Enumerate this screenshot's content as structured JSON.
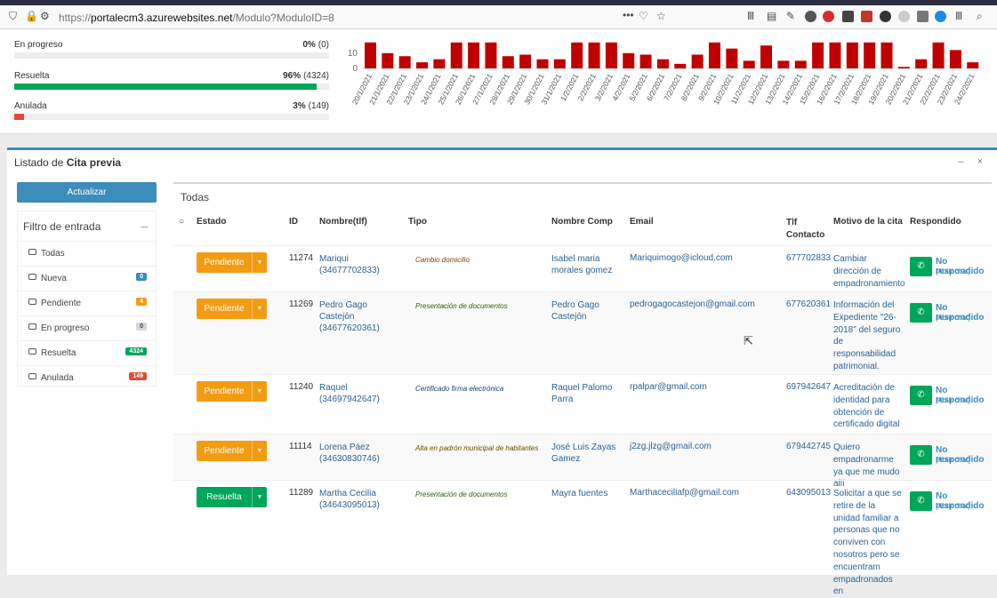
{
  "browser": {
    "url_prefix": "https://",
    "url_host": "portalecm3.azurewebsites.net",
    "url_path": "/Modulo?ModuloID=8",
    "toolbar_menu": "•••"
  },
  "stats": [
    {
      "label": "En progreso",
      "pct": "0%",
      "count": "(0)",
      "value": 0,
      "color": "#d2d6de"
    },
    {
      "label": "Resuelta",
      "pct": "96%",
      "count": "(4324)",
      "value": 0.96,
      "color": "#00a65a"
    },
    {
      "label": "Anulada",
      "pct": "3%",
      "count": "(149)",
      "value": 0.03,
      "color": "#dd4b39"
    }
  ],
  "chart_data": {
    "type": "bar",
    "color": "#c00000",
    "grid": false,
    "y_ticks": [
      "10",
      "0"
    ],
    "ylim": [
      0,
      18
    ],
    "categories": [
      "20/1/2021",
      "21/1/2021",
      "22/1/2021",
      "23/1/2021",
      "24/1/2021",
      "25/1/2021",
      "26/1/2021",
      "27/1/2021",
      "28/1/2021",
      "29/1/2021",
      "30/1/2021",
      "31/1/2021",
      "1/2/2021",
      "2/2/2021",
      "3/2/2021",
      "4/2/2021",
      "5/2/2021",
      "6/2/2021",
      "7/2/2021",
      "8/2/2021",
      "9/2/2021",
      "10/2/2021",
      "11/2/2021",
      "12/2/2021",
      "13/2/2021",
      "14/2/2021",
      "15/2/2021",
      "16/2/2021",
      "17/2/2021",
      "18/2/2021",
      "19/2/2021",
      "20/2/2021",
      "21/2/2021",
      "22/2/2021",
      "23/2/2021",
      "24/2/2021"
    ],
    "values": [
      17,
      10,
      8,
      4,
      6,
      17,
      17,
      17,
      8,
      9,
      6,
      6,
      17,
      17,
      17,
      10,
      9,
      6,
      3,
      9,
      17,
      13,
      5,
      15,
      5,
      5,
      17,
      17,
      17,
      17,
      17,
      1,
      6,
      17,
      12,
      4
    ]
  },
  "panel": {
    "title_prefix": "Listado de",
    "title_bold": "Cita previa",
    "tools": "– ×"
  },
  "sidebar": {
    "update_button": "Actualizar",
    "filter_title": "Filtro de entrada",
    "filter_toggle": "–",
    "items": [
      {
        "label": "Todas",
        "badge": "",
        "color": ""
      },
      {
        "label": "Nueva",
        "badge": "0",
        "color": "#3c8dbc"
      },
      {
        "label": "Pendiente",
        "badge": "4",
        "color": "#f39c12"
      },
      {
        "label": "En progreso",
        "badge": "0",
        "color": "#d2d6de"
      },
      {
        "label": "Resuelta",
        "badge": "4324",
        "color": "#00a65a"
      },
      {
        "label": "Anulada",
        "badge": "149",
        "color": "#dd4b39"
      }
    ]
  },
  "table": {
    "title": "Todas",
    "headers": {
      "estado": "Estado",
      "id": "ID",
      "nombre": "Nombre(tlf)",
      "tipo": "Tipo",
      "nombre_comp": "Nombre Comp",
      "email": "Email",
      "tlf1": "Tlf",
      "tlf2": "Contacto",
      "motivo": "Motivo de la cita",
      "respondido": "Respondido"
    },
    "rows": [
      {
        "estado": "Pendiente",
        "estado_color": "#f39c12",
        "id": "11274",
        "nombre": "Mariqui (34677702833)",
        "tipo": "Cambio domicilio",
        "tipo_color": "#8a3b00",
        "nombre_comp": "Isabel maria morales gomez",
        "email": "Mariquimogo@icloud.com",
        "tlf": "677702833",
        "motivo": "Cambiar dirección de empadronamiento",
        "resp": "No respondido",
        "chat": "[Abrir chat]"
      },
      {
        "estado": "Pendiente",
        "estado_color": "#f39c12",
        "id": "11269",
        "nombre": "Pedro Gago Castejón (34677620361)",
        "tipo": "Presentación de documentos",
        "tipo_color": "#2f5d0a",
        "nombre_comp": "Pedro Gago Castejón",
        "email": "pedrogagocastejon@gmail.com",
        "tlf": "677620361",
        "motivo": "Información del Expediente \"26-2018\" del seguro de responsabilidad patrimonial.",
        "resp": "No respondido",
        "chat": "[Abrir chat]"
      },
      {
        "estado": "Pendiente",
        "estado_color": "#f39c12",
        "id": "11240",
        "nombre": "Raquel (34697942647)",
        "tipo": "Certificado firma electrónica",
        "tipo_color": "#1c3f6e",
        "nombre_comp": "Raquel Palomo Parra",
        "email": "rpalpar@gmail.com",
        "tlf": "697942647",
        "motivo": "Acreditación de identidad para obtención de certificado digital",
        "resp": "No respondido",
        "chat": "[Abrir chat]"
      },
      {
        "estado": "Pendiente",
        "estado_color": "#f39c12",
        "id": "11114",
        "nombre": "Lorena Páez (34630830746)",
        "tipo": "Alta en padrón municipal de habitantes",
        "tipo_color": "#6b4a00",
        "nombre_comp": "José Luis Zayas Gamez",
        "email": "j2zg.jlzg@gmail.com",
        "tlf": "679442745",
        "motivo": "Quiero empadronarme ya que me mudo allí",
        "resp": "No respondido",
        "chat": "[Abrir chat]"
      },
      {
        "estado": "Resuelta",
        "estado_color": "#00a65a",
        "id": "11289",
        "nombre": "Martha Cecilia (34643095013)",
        "tipo": "Presentación de documentos",
        "tipo_color": "#2f5d0a",
        "nombre_comp": "Mayra fuentes",
        "email": "Marthaceciliafp@gmail.com",
        "tlf": "643095013",
        "motivo": "Solicitar a que se retire de la unidad familiar a personas que no conviven con nosotros pero se encuentram empadronados en",
        "resp": "No respondido",
        "chat": "[Abrir chat]"
      }
    ]
  }
}
